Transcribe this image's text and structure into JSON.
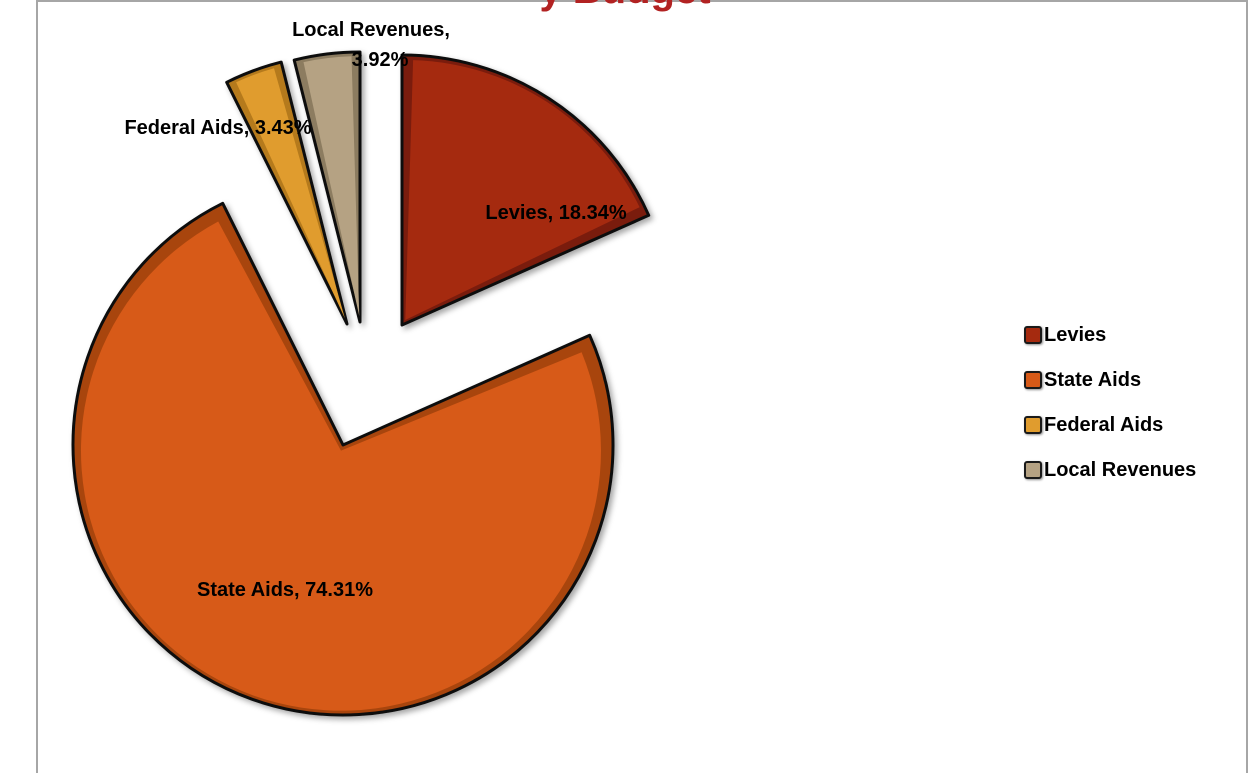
{
  "title_fragment": "y Budget",
  "chart_data": {
    "type": "pie",
    "exploded": true,
    "legend_position": "right",
    "slices": [
      {
        "name": "Levies",
        "value": 18.34,
        "label": "Levies, 18.34%",
        "color": "#a52a0f",
        "edge": "#7a1e0a"
      },
      {
        "name": "State Aids",
        "value": 74.31,
        "label": "State Aids, 74.31%",
        "color": "#d75a18",
        "edge": "#a8440f"
      },
      {
        "name": "Federal Aids",
        "value": 3.43,
        "label": "Federal Aids, 3.43%",
        "color": "#e09c2e",
        "edge": "#b57a1c"
      },
      {
        "name": "Local Revenues",
        "value": 3.92,
        "label_line1": "Local Revenues,",
        "label_line2": "3.92%",
        "color": "#b5a283",
        "edge": "#8c7b60"
      }
    ]
  },
  "legend": {
    "items": [
      {
        "label": "Levies",
        "color": "#a52a0f"
      },
      {
        "label": "State Aids",
        "color": "#d75a18"
      },
      {
        "label": "Federal Aids",
        "color": "#e09c2e"
      },
      {
        "label": "Local Revenues",
        "color": "#b5a283"
      }
    ]
  }
}
